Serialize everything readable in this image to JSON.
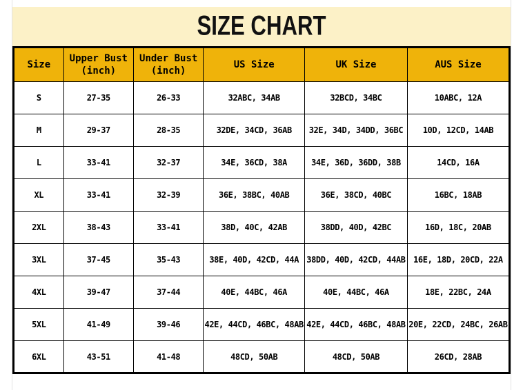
{
  "title": "SIZE CHART",
  "colors": {
    "banner_bg": "#FCF1C7",
    "header_bg": "#EFB30A",
    "grid": "#000000",
    "text": "#000000"
  },
  "chart_data": {
    "type": "table",
    "title": "SIZE CHART",
    "columns": [
      "Size",
      "Upper Bust\n(inch)",
      "Under Bust\n(inch)",
      "US Size",
      "UK Size",
      "AUS Size"
    ],
    "rows": [
      [
        "S",
        "27-35",
        "26-33",
        "32ABC, 34AB",
        "32BCD, 34BC",
        "10ABC, 12A"
      ],
      [
        "M",
        "29-37",
        "28-35",
        "32DE, 34CD, 36AB",
        "32E, 34D, 34DD, 36BC",
        "10D, 12CD, 14AB"
      ],
      [
        "L",
        "33-41",
        "32-37",
        "34E, 36CD, 38A",
        "34E, 36D, 36DD, 38B",
        "14CD, 16A"
      ],
      [
        "XL",
        "33-41",
        "32-39",
        "36E, 38BC, 40AB",
        "36E, 38CD, 40BC",
        "16BC, 18AB"
      ],
      [
        "2XL",
        "38-43",
        "33-41",
        "38D, 40C, 42AB",
        "38DD, 40D, 42BC",
        "16D, 18C, 20AB"
      ],
      [
        "3XL",
        "37-45",
        "35-43",
        "38E, 40D, 42CD, 44A",
        "38DD, 40D, 42CD, 44AB",
        "16E, 18D, 20CD, 22A"
      ],
      [
        "4XL",
        "39-47",
        "37-44",
        "40E, 44BC, 46A",
        "40E, 44BC, 46A",
        "18E, 22BC, 24A"
      ],
      [
        "5XL",
        "41-49",
        "39-46",
        "42E, 44CD, 46BC, 48AB",
        "42E, 44CD, 46BC, 48AB",
        "20E, 22CD, 24BC, 26AB"
      ],
      [
        "6XL",
        "43-51",
        "41-48",
        "48CD, 50AB",
        "48CD, 50AB",
        "26CD, 28AB"
      ]
    ]
  }
}
